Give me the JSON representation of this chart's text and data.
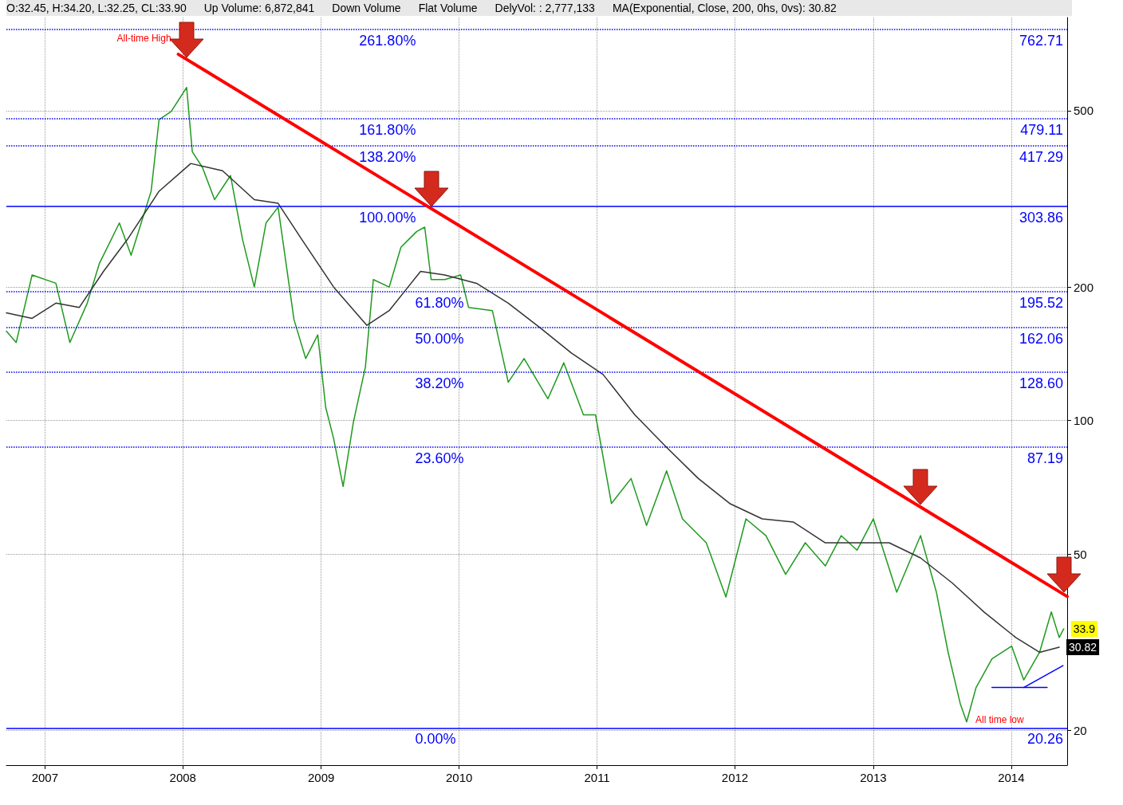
{
  "chart_data": {
    "type": "line",
    "annotations": [
      "O:32.45, H:34.20, L:32.25, CL:33.90",
      "Up Volume: 6,872,841",
      "Down Volume",
      "Flat Volume",
      "DelyVol: : 2,777,133",
      "MA(Exponential, Close, 200, 0hs, 0vs): 30.82",
      {
        "text": "All-time High",
        "x": "2007-12-20",
        "y": 670
      },
      {
        "text": "All time low",
        "x": "2013-09-05",
        "y": 20.26
      },
      {
        "text": "33.9",
        "x": "2014-05-20",
        "y": 33.9
      },
      {
        "text": "30.82",
        "x": "2014-05-08",
        "y": 30.82
      },
      {
        "text": "261.80%",
        "x": "2009-04-01",
        "y": 762.71
      },
      {
        "text": "161.80%",
        "x": "2009-04-01",
        "y": 479.11
      },
      {
        "text": "138.20%",
        "x": "2009-04-01",
        "y": 417.29
      },
      {
        "text": "100.00%",
        "x": "2009-04-01",
        "y": 303.86
      },
      {
        "text": "61.80%",
        "x": "2009-08-27",
        "y": 195.52
      },
      {
        "text": "50.00%",
        "x": "2009-08-27",
        "y": 162.06
      },
      {
        "text": "38.20%",
        "x": "2009-08-27",
        "y": 128.6
      },
      {
        "text": "23.60%",
        "x": "2009-08-27",
        "y": 87.19
      },
      {
        "text": "0.00%",
        "x": "2009-08-27",
        "y": 20.26
      }
    ],
    "series": [
      {
        "color": "#1f9a1f",
        "x": [
          "2006-09-21",
          "2006-10-17",
          "2006-11-28",
          "2007-01-30",
          "2007-03-08",
          "2007-04-23",
          "2007-05-25",
          "2007-07-17",
          "2007-08-17",
          "2007-10-09",
          "2007-10-30",
          "2007-12-01",
          "2008-01-11",
          "2008-01-26",
          "2008-02-22",
          "2008-03-25",
          "2008-05-06",
          "2008-06-07",
          "2008-07-08",
          "2008-08-08",
          "2008-09-09",
          "2008-10-21",
          "2008-11-21",
          "2008-12-23",
          "2009-01-13",
          "2009-02-03",
          "2009-02-28",
          "2009-03-27",
          "2009-04-28",
          "2009-05-19",
          "2009-06-30",
          "2009-07-31",
          "2009-09-11",
          "2009-10-02",
          "2009-10-19",
          "2009-11-24",
          "2010-01-05",
          "2010-01-26",
          "2010-03-30",
          "2010-05-11",
          "2010-06-22",
          "2010-08-24",
          "2010-10-05",
          "2010-11-26",
          "2010-12-28",
          "2011-02-08",
          "2011-04-01",
          "2011-05-12",
          "2011-07-04",
          "2011-08-15",
          "2011-10-17",
          "2011-12-08",
          "2012-01-30",
          "2012-03-23",
          "2012-05-14",
          "2012-07-05",
          "2012-08-27",
          "2012-10-08",
          "2012-11-19",
          "2013-01-01",
          "2013-03-04",
          "2013-05-06",
          "2013-06-17",
          "2013-07-18",
          "2013-08-19",
          "2013-09-05",
          "2013-09-30",
          "2013-11-11",
          "2014-01-02",
          "2014-02-03",
          "2014-03-17",
          "2014-04-17",
          "2014-05-08",
          "2014-05-20"
        ],
        "values": [
          159,
          150,
          213,
          204,
          150,
          184,
          226,
          279,
          236,
          329,
          477,
          498,
          564,
          404,
          372,
          315,
          357,
          256,
          200,
          279,
          303,
          169,
          138,
          156,
          107,
          91,
          71,
          99,
          132,
          208,
          200,
          246,
          267,
          273,
          208,
          208,
          213,
          180,
          177,
          122,
          138,
          112,
          135,
          103,
          103,
          65,
          74,
          58,
          77,
          60,
          53,
          40,
          60,
          55,
          45,
          53,
          47,
          55,
          51,
          60,
          41,
          55,
          41,
          30,
          23,
          20.9,
          25,
          29,
          31,
          26,
          30,
          37,
          32.4,
          33.9
        ]
      },
      {
        "color": "#333333",
        "x": [
          "2006-09-21",
          "2006-11-28",
          "2007-01-30",
          "2007-04-02",
          "2007-06-05",
          "2007-08-07",
          "2007-10-30",
          "2008-01-22",
          "2008-04-15",
          "2008-07-08",
          "2008-09-09",
          "2008-11-11",
          "2009-02-03",
          "2009-05-02",
          "2009-06-30",
          "2009-09-21",
          "2009-11-24",
          "2010-02-16",
          "2010-05-11",
          "2010-08-03",
          "2010-10-25",
          "2011-01-17",
          "2011-04-11",
          "2011-07-04",
          "2011-09-26",
          "2011-12-18",
          "2012-03-13",
          "2012-06-04",
          "2012-08-27",
          "2012-11-19",
          "2013-02-12",
          "2013-05-06",
          "2013-07-29",
          "2013-10-21",
          "2014-01-13",
          "2014-03-17",
          "2014-05-08"
        ],
        "values": [
          175,
          170,
          184,
          180,
          217,
          256,
          329,
          380,
          366,
          315,
          309,
          256,
          200,
          164,
          177,
          217,
          213,
          204,
          184,
          162,
          142,
          127,
          103,
          87,
          74,
          65,
          60,
          59,
          53,
          53,
          53,
          49,
          43,
          37,
          32.4,
          30,
          30.82
        ]
      },
      {
        "color": "#ff0000",
        "x": [
          "2007-12-20",
          "2014-05-29"
        ],
        "values": [
          670,
          40.1
        ]
      },
      {
        "color": "#0000ff",
        "x": [
          "2013-11-11",
          "2014-04-06"
        ],
        "values": [
          25,
          25
        ]
      },
      {
        "color": "#0000ff",
        "x": [
          "2014-02-03",
          "2014-05-18"
        ],
        "values": [
          25,
          28
        ]
      }
    ],
    "xlim": [
      "2006-09-21",
      "2014-05-29"
    ],
    "xticks": [
      {
        "value": "2007-01-01",
        "label": "2007"
      },
      {
        "value": "2008-01-01",
        "label": "2008"
      },
      {
        "value": "2009-01-01",
        "label": "2009"
      },
      {
        "value": "2010-01-01",
        "label": "2010"
      },
      {
        "value": "2011-01-01",
        "label": "2011"
      },
      {
        "value": "2012-01-01",
        "label": "2012"
      },
      {
        "value": "2013-01-01",
        "label": "2013"
      },
      {
        "value": "2014-01-01",
        "label": "2014"
      }
    ],
    "ylim": [
      16.7,
      811
    ],
    "yticks": [
      20,
      50,
      100,
      200,
      500
    ],
    "log": true,
    "grid": true,
    "marker": "none",
    "line_style": "solid",
    "ref_lines": [
      {
        "axis": "y",
        "value": 762.71,
        "label": "762.71",
        "color": "#0000ff",
        "line_style": "dotted"
      },
      {
        "axis": "y",
        "value": 479.11,
        "label": "479.11",
        "color": "#0000ff",
        "line_style": "dotted"
      },
      {
        "axis": "y",
        "value": 417.29,
        "label": "417.29",
        "color": "#0000ff",
        "line_style": "dotted"
      },
      {
        "axis": "y",
        "value": 303.86,
        "label": "303.86",
        "color": "#0000ff",
        "line_style": "solid"
      },
      {
        "axis": "y",
        "value": 195.52,
        "label": "195.52",
        "color": "#0000ff",
        "line_style": "dotted"
      },
      {
        "axis": "y",
        "value": 162.06,
        "label": "162.06",
        "color": "#0000ff",
        "line_style": "dotted"
      },
      {
        "axis": "y",
        "value": 128.6,
        "label": "128.60",
        "color": "#0000ff",
        "line_style": "dotted"
      },
      {
        "axis": "y",
        "value": 87.19,
        "label": "87.19",
        "color": "#0000ff",
        "line_style": "dotted"
      },
      {
        "axis": "y",
        "value": 20.26,
        "label": "20.26",
        "color": "#0000ff",
        "line_style": "solid"
      }
    ]
  }
}
